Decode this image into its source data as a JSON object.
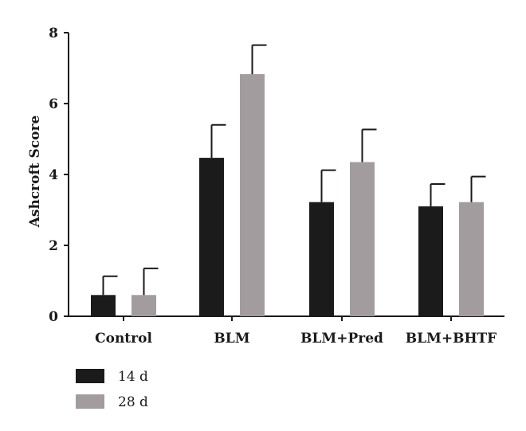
{
  "chart_data": {
    "type": "bar",
    "title": "",
    "xlabel": "",
    "ylabel": "Ashcroft Score",
    "ylim": [
      0,
      8
    ],
    "yticks": [
      0,
      2,
      4,
      6,
      8
    ],
    "categories": [
      "Control",
      "BLM",
      "BLM+Pred",
      "BLM+BHTF"
    ],
    "series": [
      {
        "name": "14 d",
        "color": "#1b1b1b",
        "values": [
          0.6,
          4.47,
          3.22,
          3.1
        ],
        "errors": [
          0.53,
          0.93,
          0.9,
          0.63
        ]
      },
      {
        "name": "28 d",
        "color": "#a39c9e",
        "values": [
          0.6,
          6.83,
          4.35,
          3.22
        ],
        "errors": [
          0.75,
          0.82,
          0.92,
          0.72
        ]
      }
    ],
    "grid": false,
    "legend_position": "bottom-left"
  }
}
